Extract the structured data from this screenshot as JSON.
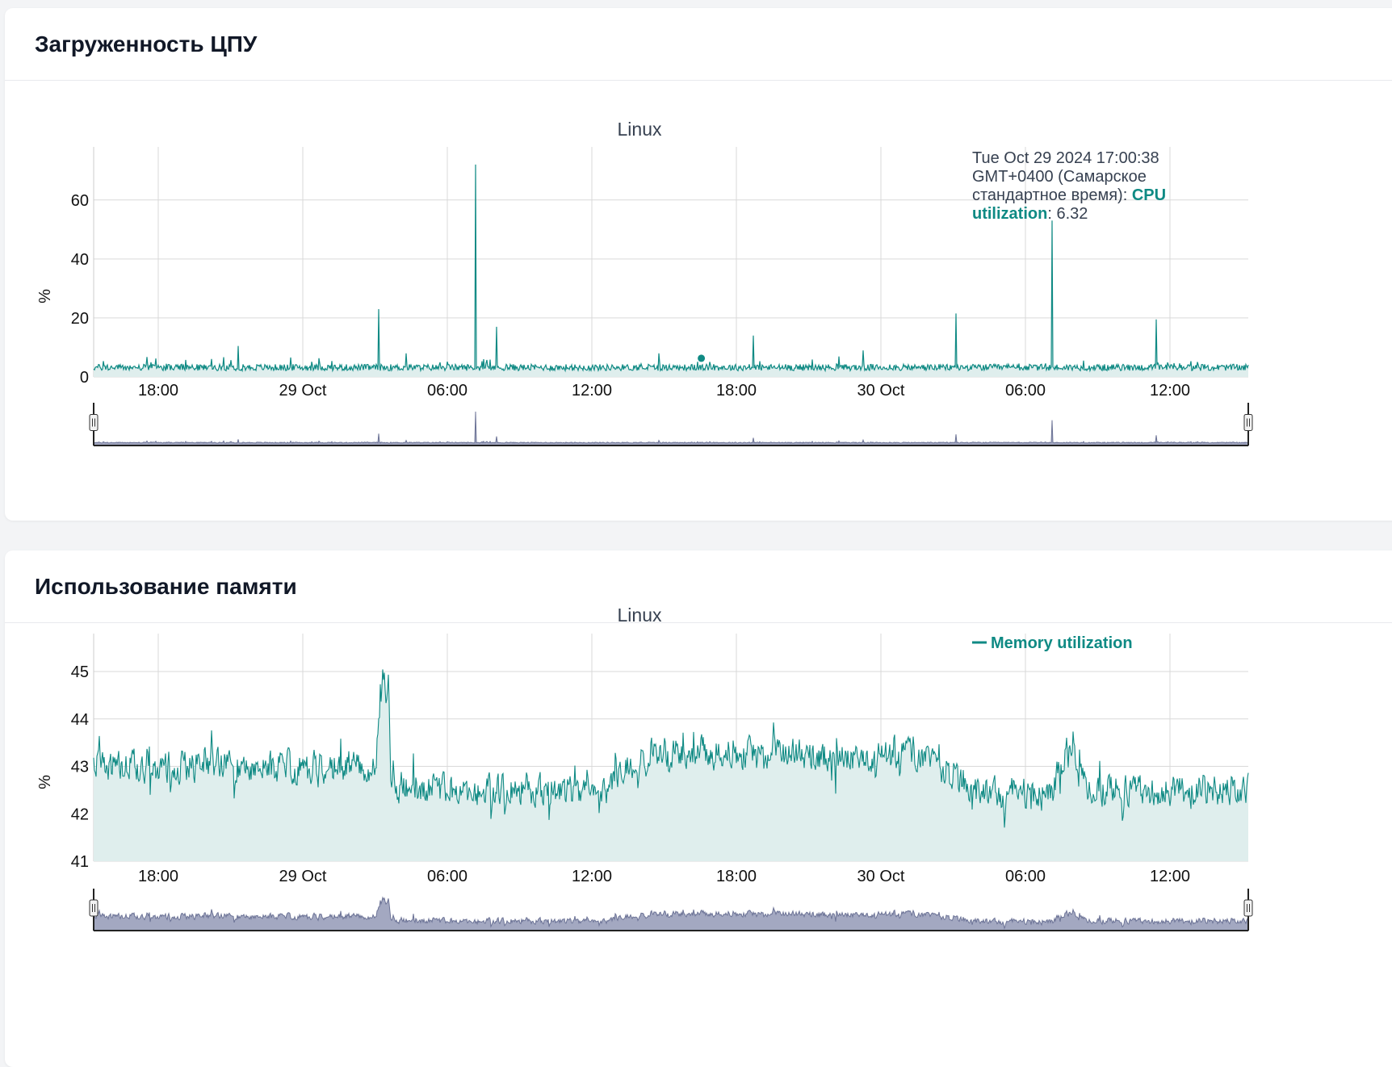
{
  "colors": {
    "series": "#0f8a84",
    "series_fill": "#dfeeed",
    "navigator_fill": "#a3a8c1",
    "navigator_line": "#6c7396",
    "grid": "#d9d9d9"
  },
  "cpu": {
    "card_title": "Загруженность ЦПУ",
    "chart_title": "Linux",
    "ylabel": "%",
    "tooltip": {
      "line1": "Tue Oct 29 2024 17:00:38",
      "line2": "GMT+0400 (Самарское",
      "line3_prefix": "стандартное время): ",
      "line3_accent": "CPU",
      "line4_accent": "utilization",
      "line4_suffix": ": 6.32"
    },
    "navigator_handle_icon": "drag-handle-icon"
  },
  "memory": {
    "card_title": "Использование памяти",
    "chart_title": "Linux",
    "ylabel": "%",
    "legend_label": "Memory utilization",
    "navigator_handle_icon": "drag-handle-icon"
  },
  "chart_data": [
    {
      "type": "area",
      "title": "Linux",
      "ylabel": "%",
      "series": [
        {
          "name": "CPU utilization"
        }
      ],
      "x_range": [
        "2024-10-28 15:45",
        "2024-10-30 15:45"
      ],
      "x_ticks": [
        "18:00",
        "29 Oct",
        "06:00",
        "12:00",
        "18:00",
        "30 Oct",
        "06:00",
        "12:00"
      ],
      "y_ticks": [
        0,
        20,
        40,
        60
      ],
      "ylim": [
        0,
        78
      ],
      "baseline": 3.2,
      "spikes": [
        {
          "x": "2024-10-28 21:45",
          "y": 10.5
        },
        {
          "x": "2024-10-29 03:35",
          "y": 23
        },
        {
          "x": "2024-10-29 04:45",
          "y": 8
        },
        {
          "x": "2024-10-29 07:37",
          "y": 72
        },
        {
          "x": "2024-10-29 08:30",
          "y": 17
        },
        {
          "x": "2024-10-29 15:15",
          "y": 8
        },
        {
          "x": "2024-10-29 19:10",
          "y": 14
        },
        {
          "x": "2024-10-29 23:45",
          "y": 9
        },
        {
          "x": "2024-10-30 03:35",
          "y": 21.5
        },
        {
          "x": "2024-10-30 07:35",
          "y": 53
        },
        {
          "x": "2024-10-30 11:55",
          "y": 19.5
        }
      ],
      "highlight": {
        "x": "2024-10-29 17:00:38",
        "y": 6.32
      },
      "grid": true
    },
    {
      "type": "area",
      "title": "Linux",
      "ylabel": "%",
      "series": [
        {
          "name": "Memory utilization"
        }
      ],
      "x_range": [
        "2024-10-28 15:45",
        "2024-10-30 15:45"
      ],
      "x_ticks": [
        "18:00",
        "29 Oct",
        "06:00",
        "12:00",
        "18:00",
        "30 Oct",
        "06:00",
        "12:00"
      ],
      "y_ticks": [
        41,
        42,
        43,
        44,
        45
      ],
      "ylim": [
        41,
        45.8
      ],
      "trend": [
        {
          "x": "2024-10-28 15:45",
          "y": 43.0
        },
        {
          "x": "2024-10-29 03:30",
          "y": 43.0
        },
        {
          "x": "2024-10-29 03:40",
          "y": 44.8
        },
        {
          "x": "2024-10-29 04:00",
          "y": 44.8
        },
        {
          "x": "2024-10-29 04:05",
          "y": 42.5
        },
        {
          "x": "2024-10-29 13:00",
          "y": 42.5
        },
        {
          "x": "2024-10-29 14:30",
          "y": 43.3
        },
        {
          "x": "2024-10-30 02:00",
          "y": 43.2
        },
        {
          "x": "2024-10-30 04:30",
          "y": 42.5
        },
        {
          "x": "2024-10-30 07:30",
          "y": 42.4
        },
        {
          "x": "2024-10-30 08:10",
          "y": 43.3
        },
        {
          "x": "2024-10-30 09:00",
          "y": 42.5
        },
        {
          "x": "2024-10-30 15:45",
          "y": 42.5
        }
      ],
      "legend": "top-right",
      "grid": true
    }
  ]
}
